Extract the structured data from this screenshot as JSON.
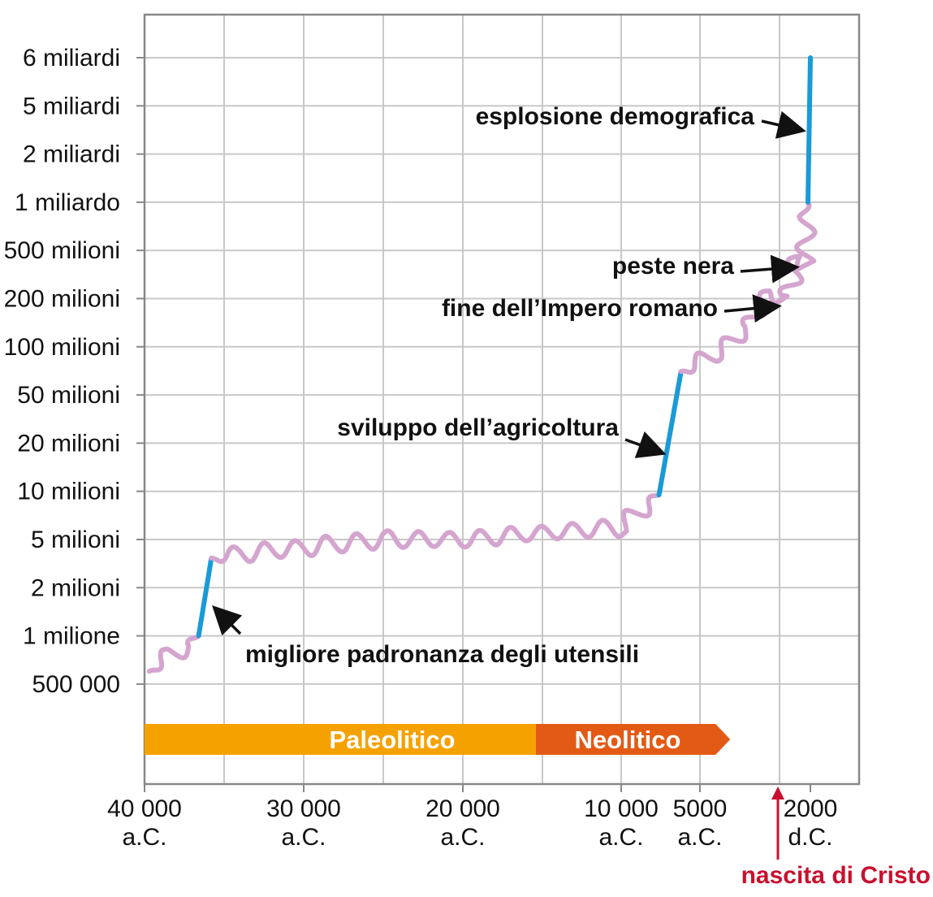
{
  "chart_data": {
    "type": "line",
    "title": "",
    "xlabel": "",
    "ylabel": "",
    "y_scale": "categorical-log",
    "y_ticks": [
      "500 000",
      "1 milione",
      "2 milioni",
      "5 milioni",
      "10 milioni",
      "20 milioni",
      "50 milioni",
      "100 milioni",
      "200 milioni",
      "500 milioni",
      "1 miliardo",
      "2 miliardi",
      "5 miliardi",
      "6 miliardi"
    ],
    "y_tick_values": [
      500000,
      1000000,
      2000000,
      5000000,
      10000000,
      20000000,
      50000000,
      100000000,
      200000000,
      500000000,
      1000000000,
      2000000000,
      5000000000,
      6000000000
    ],
    "x_ticks": [
      {
        "year": -40000,
        "line1": "40 000",
        "line2": "a.C."
      },
      {
        "year": -30000,
        "line1": "30 000",
        "line2": "a.C."
      },
      {
        "year": -20000,
        "line1": "20 000",
        "line2": "a.C."
      },
      {
        "year": -10000,
        "line1": "10 000",
        "line2": "a.C."
      },
      {
        "year": -5000,
        "line1": "5000",
        "line2": "a.C."
      },
      {
        "year": 2000,
        "line1": "2000",
        "line2": "d.C."
      }
    ],
    "grid": true,
    "series": [
      {
        "segments": [
          {
            "kind": "slow",
            "color": "#d4a5cf",
            "points": [
              [
                -39700,
                600000
              ],
              [
                -38500,
                750000
              ],
              [
                -37200,
                850000
              ],
              [
                -36600,
                1000000
              ]
            ]
          },
          {
            "kind": "rapid",
            "color": "#1a9ad6",
            "points": [
              [
                -36600,
                1000000
              ],
              [
                -35800,
                3500000
              ]
            ]
          },
          {
            "kind": "slow",
            "color": "#d4a5cf",
            "points": [
              [
                -35800,
                3500000
              ],
              [
                -34000,
                3800000
              ],
              [
                -30000,
                4300000
              ],
              [
                -25000,
                5000000
              ],
              [
                -20000,
                5000000
              ],
              [
                -15000,
                5500000
              ],
              [
                -10000,
                6000000
              ],
              [
                -8500,
                8000000
              ],
              [
                -7600,
                9500000
              ]
            ]
          },
          {
            "kind": "rapid",
            "color": "#1a9ad6",
            "points": [
              [
                -7600,
                9500000
              ],
              [
                -6200,
                70000000
              ]
            ]
          },
          {
            "kind": "slow",
            "color": "#d4a5cf",
            "points": [
              [
                -6200,
                70000000
              ],
              [
                -4000,
                90000000
              ],
              [
                -2000,
                130000000
              ],
              [
                -500,
                230000000
              ],
              [
                500,
                200000000
              ],
              [
                1340,
                450000000
              ],
              [
                1700,
                400000000
              ],
              [
                1850,
                1000000000
              ]
            ]
          },
          {
            "kind": "rapid",
            "color": "#1a9ad6",
            "points": [
              [
                1850,
                1000000000
              ],
              [
                2000,
                6000000000
              ]
            ]
          }
        ]
      }
    ],
    "eras": [
      {
        "label": "Paleolitico",
        "color": "#f5a100",
        "from": -40000,
        "to": -15000
      },
      {
        "label": "Neolitico",
        "color": "#e35a14",
        "from": -15000,
        "to": -4000
      }
    ],
    "annotations": [
      {
        "id": "utensili",
        "text": "migliore padronanza degli utensili",
        "year": -36000
      },
      {
        "id": "agricoltura",
        "text": "sviluppo dell’agricoltura",
        "year": -6800
      },
      {
        "id": "impero",
        "text": "fine dell’Impero romano",
        "year": 476
      },
      {
        "id": "peste",
        "text": "peste nera",
        "year": 1347
      },
      {
        "id": "esplosione",
        "text": "esplosione demografica",
        "year": 1900
      }
    ],
    "marker": {
      "text": "nascita di Cristo",
      "year": 0,
      "color": "#c8102e"
    },
    "colors": {
      "slow": "#d4a5cf",
      "rapid": "#1a9ad6",
      "grid": "#c8c8c8",
      "frame": "#888888"
    }
  }
}
